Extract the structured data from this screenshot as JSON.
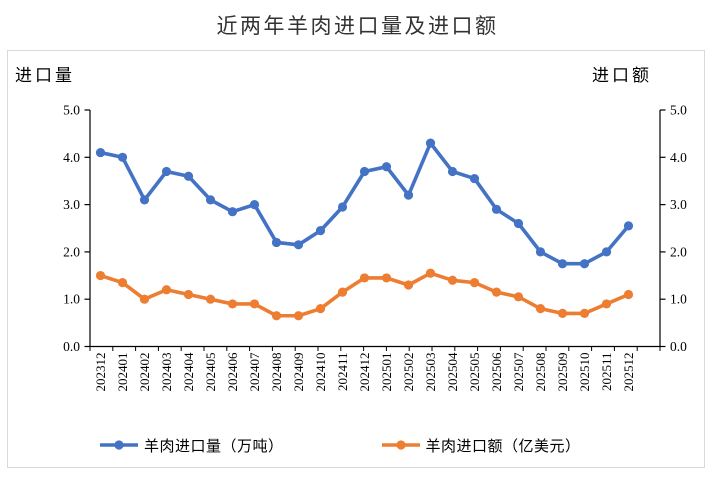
{
  "title": "近两年羊肉进口量及进口额",
  "axes": {
    "left_title": "进口量",
    "right_title": "进口额",
    "y_tick_labels": [
      "0.0",
      "1.0",
      "2.0",
      "3.0",
      "4.0",
      "5.0"
    ]
  },
  "chart_data": {
    "type": "line",
    "title": "近两年羊肉进口量及进口额",
    "categories": [
      "202312",
      "202401",
      "202402",
      "202403",
      "202404",
      "202405",
      "202406",
      "202407",
      "202408",
      "202409",
      "202410",
      "202411",
      "202412",
      "202501",
      "202502",
      "202503",
      "202504",
      "202505",
      "202506",
      "202507",
      "202508",
      "202509",
      "202510",
      "202511",
      "202512"
    ],
    "series": [
      {
        "name": "羊肉进口量（万吨）",
        "axis": "left",
        "color": "#4472C4",
        "values": [
          4.1,
          4.0,
          3.1,
          3.7,
          3.6,
          3.1,
          2.85,
          3.0,
          2.2,
          2.15,
          2.45,
          2.95,
          3.7,
          3.8,
          3.2,
          4.3,
          3.7,
          3.55,
          2.9,
          2.6,
          2.0,
          1.75,
          1.75,
          2.0,
          2.55
        ]
      },
      {
        "name": "羊肉进口额（亿美元）",
        "axis": "right",
        "color": "#ED7D31",
        "values": [
          1.5,
          1.35,
          1.0,
          1.2,
          1.1,
          1.0,
          0.9,
          0.9,
          0.65,
          0.65,
          0.8,
          1.15,
          1.45,
          1.45,
          1.3,
          1.55,
          1.4,
          1.35,
          1.15,
          1.05,
          0.8,
          0.7,
          0.7,
          0.9,
          1.1
        ]
      }
    ],
    "ylim": [
      0,
      5
    ],
    "ytick_step": 1.0,
    "dual_axis": true,
    "grid": false,
    "legend_position": "bottom"
  },
  "colors": {
    "axis_line": "#000000",
    "figure_border": "#d9d9d9",
    "title_text": "#333333"
  }
}
